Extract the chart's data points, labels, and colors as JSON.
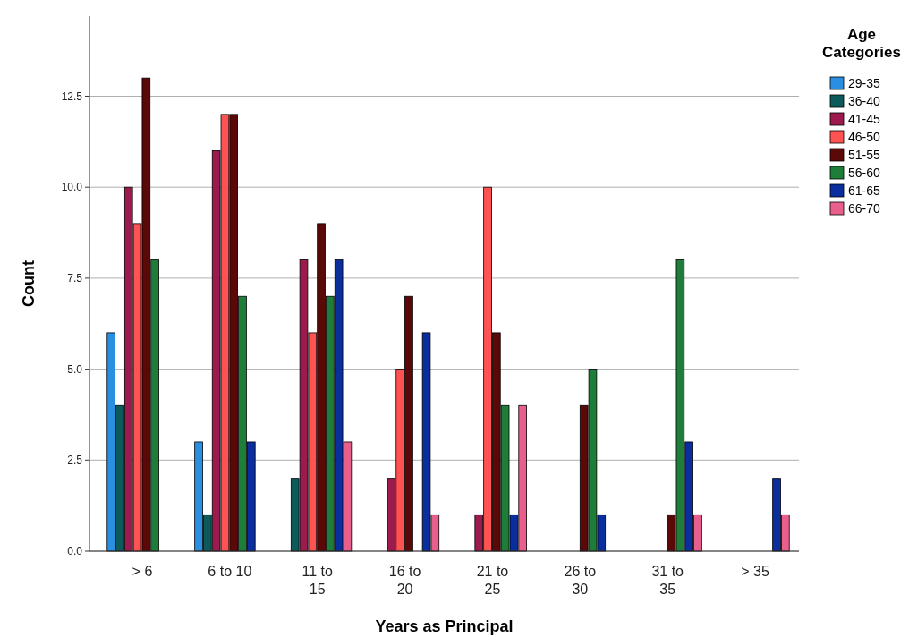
{
  "chart_data": {
    "type": "bar",
    "xlabel": "Years as Principal",
    "ylabel": "Count",
    "legend_title": "Age Categories",
    "categories": [
      "> 6",
      "6 to 10",
      "11 to 15",
      "16 to 20",
      "21 to 25",
      "26 to 30",
      "31 to 35",
      "> 35"
    ],
    "series": [
      {
        "name": "29-35",
        "color": "#2a8fe0",
        "values": [
          6,
          3,
          null,
          null,
          null,
          null,
          null,
          null
        ]
      },
      {
        "name": "36-40",
        "color": "#0e5a5a",
        "values": [
          4,
          1,
          2,
          null,
          null,
          null,
          null,
          null
        ]
      },
      {
        "name": "41-45",
        "color": "#9c1a4e",
        "values": [
          10,
          11,
          8,
          2,
          1,
          null,
          null,
          null
        ]
      },
      {
        "name": "46-50",
        "color": "#ff5252",
        "values": [
          9,
          12,
          6,
          5,
          10,
          null,
          null,
          null
        ]
      },
      {
        "name": "51-55",
        "color": "#5a0808",
        "values": [
          13,
          12,
          9,
          7,
          6,
          4,
          1,
          null
        ]
      },
      {
        "name": "56-60",
        "color": "#1f7d3a",
        "values": [
          8,
          7,
          7,
          null,
          4,
          5,
          8,
          null
        ]
      },
      {
        "name": "61-65",
        "color": "#0a2e9e",
        "values": [
          null,
          3,
          8,
          6,
          1,
          1,
          3,
          2
        ]
      },
      {
        "name": "66-70",
        "color": "#e85f8c",
        "values": [
          null,
          null,
          3,
          1,
          4,
          null,
          1,
          1
        ]
      }
    ],
    "ylim": [
      0,
      14.7
    ],
    "yticks": [
      {
        "value": 0,
        "label": "0.0"
      },
      {
        "value": 2.5,
        "label": "2.5"
      },
      {
        "value": 5,
        "label": "5.0"
      },
      {
        "value": 7.5,
        "label": "7.5"
      },
      {
        "value": 10,
        "label": "10.0"
      },
      {
        "value": 12.5,
        "label": "12.5"
      }
    ],
    "grid": "y",
    "legend": "top right"
  }
}
